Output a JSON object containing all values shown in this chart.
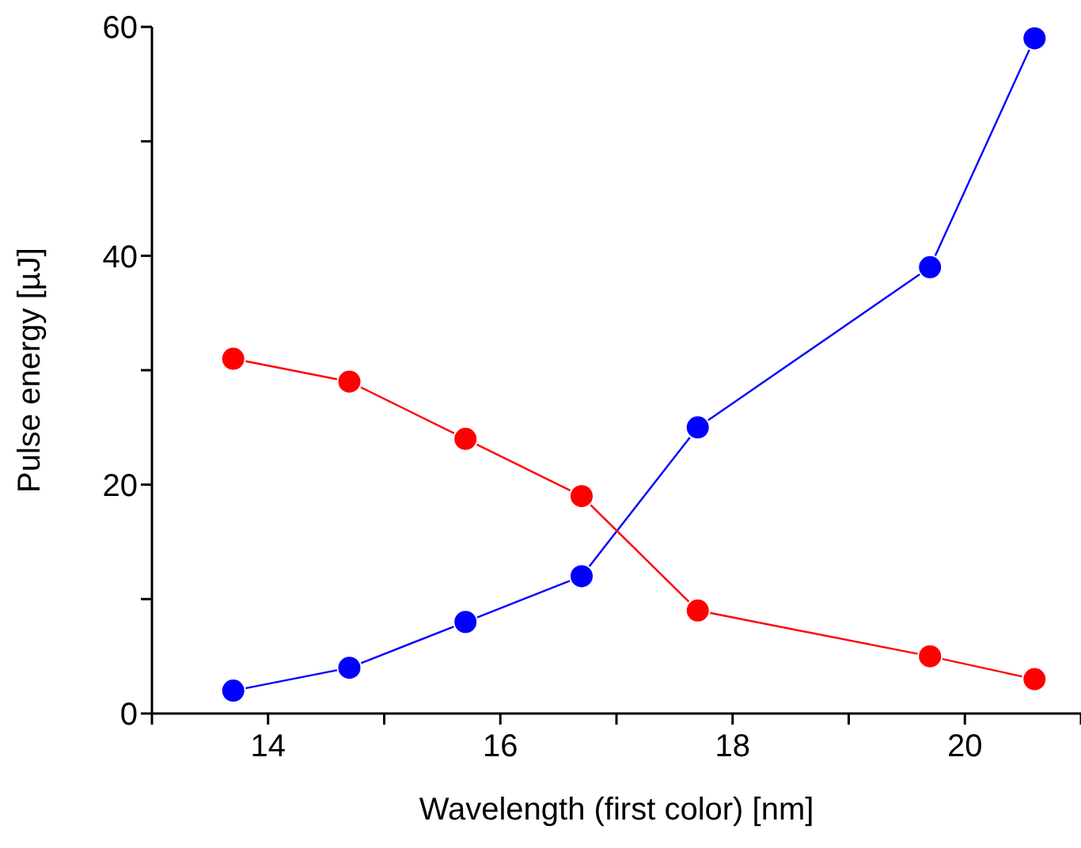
{
  "chart_data": {
    "type": "line",
    "xlabel": "Wavelength (first color) [nm]",
    "ylabel": "Pulse energy [µJ]",
    "x": [
      13.7,
      14.7,
      15.7,
      16.7,
      17.7,
      19.7,
      20.6
    ],
    "series": [
      {
        "color": "#0000ff",
        "values": [
          2,
          4,
          8,
          12,
          25,
          39,
          59
        ]
      },
      {
        "color": "#ff0000",
        "values": [
          31,
          29,
          24,
          19,
          9,
          5,
          3
        ]
      }
    ],
    "xlim": [
      13,
      21
    ],
    "xticks": [
      {
        "value": 13,
        "label": null
      },
      14,
      {
        "value": 15,
        "label": null
      },
      16,
      {
        "value": 17,
        "label": null
      },
      18,
      {
        "value": 19,
        "label": null
      },
      20,
      {
        "value": 21,
        "label": null
      }
    ],
    "ylim": [
      0,
      60
    ],
    "yticks": [
      0,
      {
        "value": 10,
        "label": null
      },
      20,
      {
        "value": 30,
        "label": null
      },
      40,
      {
        "value": 50,
        "label": null
      },
      60
    ],
    "grid": false,
    "legend": false,
    "marker": "circle",
    "line_style": "solid"
  }
}
